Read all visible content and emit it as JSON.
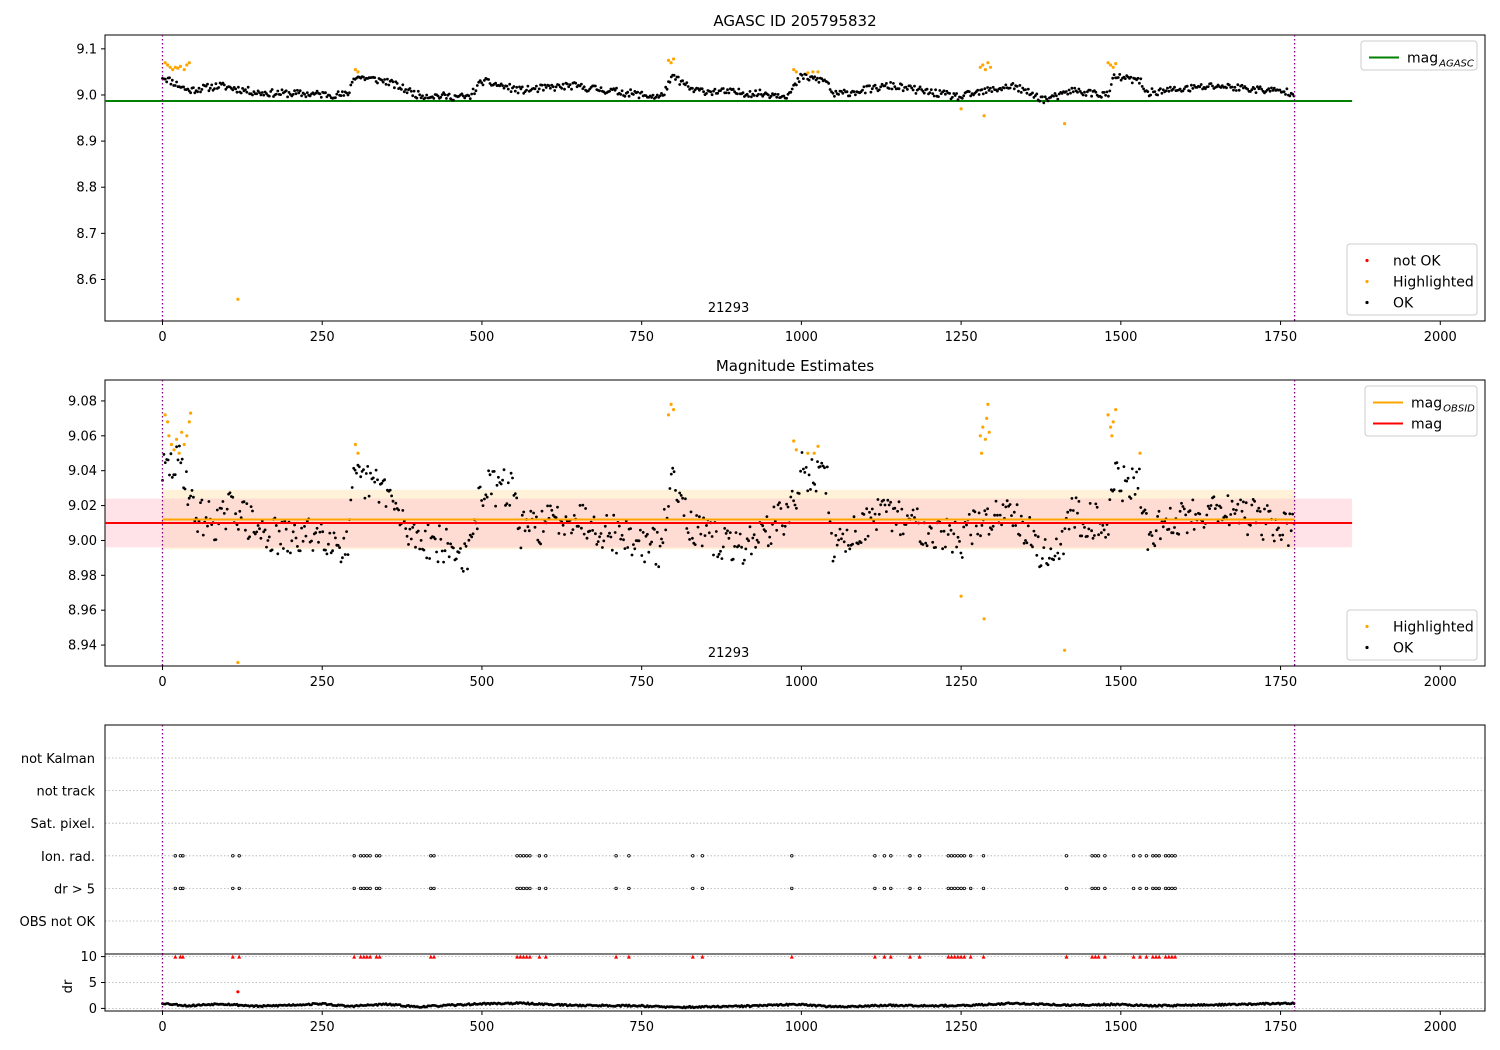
{
  "colors": {
    "ok": "#000000",
    "highlighted": "#ffa500",
    "not_ok": "#ff0000",
    "mag_agasc_line": "#008000",
    "mag_obsid_line": "#ffa500",
    "mag_line": "#ff0000",
    "obs_boundary": "#800080",
    "band_mag": "#ffc0cb",
    "band_obsid": "#ffa500"
  },
  "chart_data": [
    {
      "type": "scatter",
      "title": "AGASC ID 205795832",
      "xlabel": "",
      "ylabel": "",
      "xlim": [
        -90,
        2070
      ],
      "ylim": [
        8.51,
        9.13
      ],
      "xticks": [
        0,
        250,
        500,
        750,
        1000,
        1250,
        1500,
        1750,
        2000
      ],
      "yticks": [
        8.6,
        8.7,
        8.8,
        8.9,
        9.0,
        9.1
      ],
      "grid": false,
      "obs_boundaries": [
        0,
        1772
      ],
      "obs_label": "21293",
      "obs_label_x": 886,
      "reference_lines": [
        {
          "name": "mag_AGASC",
          "value": 8.987,
          "x_range": [
            -90,
            1862
          ],
          "color": "#008000"
        }
      ],
      "legends": [
        {
          "placement": "top-right",
          "entries": [
            {
              "label": "mag",
              "sub": "AGASC",
              "kind": "line",
              "color": "#008000"
            }
          ]
        },
        {
          "placement": "bottom-right",
          "entries": [
            {
              "label": "not OK",
              "kind": "marker",
              "color": "#ff0000"
            },
            {
              "label": "Highlighted",
              "kind": "marker",
              "color": "#ffa500"
            },
            {
              "label": "OK",
              "kind": "marker",
              "color": "#000000"
            }
          ]
        }
      ],
      "series": [
        {
          "name": "OK",
          "segments": [
            [
              0,
              9.04
            ],
            [
              40,
              9.01
            ],
            [
              90,
              9.02
            ],
            [
              150,
              9.005
            ],
            [
              290,
              9.0
            ],
            [
              300,
              9.04
            ],
            [
              350,
              9.03
            ],
            [
              400,
              9.0
            ],
            [
              480,
              8.995
            ],
            [
              500,
              9.03
            ],
            [
              560,
              9.01
            ],
            [
              640,
              9.02
            ],
            [
              780,
              8.995
            ],
            [
              800,
              9.04
            ],
            [
              830,
              9.01
            ],
            [
              980,
              9.0
            ],
            [
              1000,
              9.04
            ],
            [
              1040,
              9.03
            ],
            [
              1050,
              9.0
            ],
            [
              1140,
              9.02
            ],
            [
              1250,
              8.995
            ],
            [
              1260,
              9.0
            ],
            [
              1330,
              9.02
            ],
            [
              1380,
              8.99
            ],
            [
              1410,
              9.0
            ],
            [
              1420,
              9.01
            ],
            [
              1480,
              9.0
            ],
            [
              1490,
              9.04
            ],
            [
              1530,
              9.03
            ],
            [
              1540,
              9.005
            ],
            [
              1650,
              9.02
            ],
            [
              1772,
              9.005
            ]
          ]
        },
        {
          "name": "Highlighted",
          "points": [
            [
              4,
              9.07
            ],
            [
              8,
              9.065
            ],
            [
              12,
              9.06
            ],
            [
              16,
              9.055
            ],
            [
              20,
              9.06
            ],
            [
              24,
              9.058
            ],
            [
              28,
              9.062
            ],
            [
              34,
              9.055
            ],
            [
              38,
              9.065
            ],
            [
              42,
              9.07
            ],
            [
              118,
              8.557
            ],
            [
              302,
              9.055
            ],
            [
              306,
              9.05
            ],
            [
              792,
              9.075
            ],
            [
              796,
              9.07
            ],
            [
              800,
              9.078
            ],
            [
              988,
              9.055
            ],
            [
              992,
              9.05
            ],
            [
              1010,
              9.048
            ],
            [
              1018,
              9.05
            ],
            [
              1026,
              9.05
            ],
            [
              1250,
              8.97
            ],
            [
              1280,
              9.06
            ],
            [
              1284,
              9.065
            ],
            [
              1288,
              9.055
            ],
            [
              1292,
              9.07
            ],
            [
              1296,
              9.06
            ],
            [
              1286,
              8.955
            ],
            [
              1412,
              8.938
            ],
            [
              1480,
              9.07
            ],
            [
              1484,
              9.065
            ],
            [
              1488,
              9.06
            ],
            [
              1492,
              9.068
            ]
          ]
        }
      ]
    },
    {
      "type": "scatter",
      "title": "Magnitude Estimates",
      "xlabel": "",
      "ylabel": "",
      "xlim": [
        -90,
        2070
      ],
      "ylim": [
        8.928,
        9.092
      ],
      "xticks": [
        0,
        250,
        500,
        750,
        1000,
        1250,
        1500,
        1750,
        2000
      ],
      "yticks": [
        8.94,
        8.96,
        8.98,
        9.0,
        9.02,
        9.04,
        9.06,
        9.08
      ],
      "grid": false,
      "obs_boundaries": [
        0,
        1772
      ],
      "obs_label": "21293",
      "obs_label_x": 886,
      "bands": [
        {
          "name": "mag_OBSID_range",
          "low": 8.995,
          "high": 9.029,
          "x_range": [
            0,
            1772
          ],
          "color": "#ffa500",
          "opacity": 0.15
        },
        {
          "name": "mag_range",
          "low": 8.996,
          "high": 9.024,
          "x_range": [
            -90,
            1862
          ],
          "color": "#ffc0cb",
          "opacity": 0.45
        }
      ],
      "reference_lines": [
        {
          "name": "mag_OBSID",
          "value": 9.012,
          "x_range": [
            0,
            1772
          ],
          "color": "#ffa500"
        },
        {
          "name": "mag",
          "value": 9.01,
          "x_range": [
            -90,
            1862
          ],
          "color": "#ff0000"
        }
      ],
      "legends": [
        {
          "placement": "top-right",
          "entries": [
            {
              "label": "mag",
              "sub": "OBSID",
              "kind": "line",
              "color": "#ffa500"
            },
            {
              "label": "mag",
              "kind": "line",
              "color": "#ff0000"
            }
          ]
        },
        {
          "placement": "bottom-right",
          "entries": [
            {
              "label": "Highlighted",
              "kind": "marker",
              "color": "#ffa500"
            },
            {
              "label": "OK",
              "kind": "marker",
              "color": "#000000"
            }
          ]
        }
      ],
      "series": [
        {
          "name": "OK",
          "segments": [
            [
              0,
              9.04
            ],
            [
              30,
              9.045
            ],
            [
              50,
              9.015
            ],
            [
              90,
              9.01
            ],
            [
              110,
              9.02
            ],
            [
              150,
              9.005
            ],
            [
              200,
              9.0
            ],
            [
              250,
              9.005
            ],
            [
              290,
              8.995
            ],
            [
              300,
              9.035
            ],
            [
              350,
              9.03
            ],
            [
              380,
              9.005
            ],
            [
              420,
              9.0
            ],
            [
              480,
              8.99
            ],
            [
              500,
              9.03
            ],
            [
              550,
              9.03
            ],
            [
              560,
              9.005
            ],
            [
              640,
              9.015
            ],
            [
              700,
              9.005
            ],
            [
              780,
              8.995
            ],
            [
              800,
              9.04
            ],
            [
              830,
              9.005
            ],
            [
              900,
              8.995
            ],
            [
              960,
              9.01
            ],
            [
              990,
              9.02
            ],
            [
              1000,
              9.04
            ],
            [
              1040,
              9.035
            ],
            [
              1050,
              8.995
            ],
            [
              1100,
              9.01
            ],
            [
              1140,
              9.015
            ],
            [
              1250,
              9.0
            ],
            [
              1260,
              9.005
            ],
            [
              1330,
              9.02
            ],
            [
              1380,
              8.99
            ],
            [
              1410,
              9.0
            ],
            [
              1420,
              9.015
            ],
            [
              1480,
              9.01
            ],
            [
              1490,
              9.035
            ],
            [
              1530,
              9.03
            ],
            [
              1540,
              9.005
            ],
            [
              1650,
              9.02
            ],
            [
              1772,
              9.005
            ]
          ]
        },
        {
          "name": "Highlighted",
          "points": [
            [
              4,
              9.072
            ],
            [
              8,
              9.068
            ],
            [
              10,
              9.06
            ],
            [
              14,
              9.055
            ],
            [
              18,
              9.052
            ],
            [
              22,
              9.058
            ],
            [
              26,
              9.05
            ],
            [
              30,
              9.062
            ],
            [
              34,
              9.055
            ],
            [
              38,
              9.06
            ],
            [
              42,
              9.068
            ],
            [
              44,
              9.073
            ],
            [
              118,
              8.93
            ],
            [
              302,
              9.055
            ],
            [
              306,
              9.05
            ],
            [
              792,
              9.072
            ],
            [
              796,
              9.078
            ],
            [
              800,
              9.075
            ],
            [
              988,
              9.057
            ],
            [
              992,
              9.052
            ],
            [
              1010,
              9.05
            ],
            [
              1020,
              9.05
            ],
            [
              1026,
              9.054
            ],
            [
              1250,
              8.968
            ],
            [
              1280,
              9.06
            ],
            [
              1282,
              9.05
            ],
            [
              1284,
              9.065
            ],
            [
              1288,
              9.058
            ],
            [
              1290,
              9.07
            ],
            [
              1292,
              9.078
            ],
            [
              1294,
              9.062
            ],
            [
              1286,
              8.955
            ],
            [
              1412,
              8.937
            ],
            [
              1480,
              9.072
            ],
            [
              1484,
              9.065
            ],
            [
              1486,
              9.06
            ],
            [
              1488,
              9.068
            ],
            [
              1492,
              9.075
            ],
            [
              1530,
              9.05
            ]
          ]
        }
      ]
    },
    {
      "type": "scatter",
      "title": "",
      "xlabel": "",
      "ylabel": "",
      "xlim": [
        -90,
        2070
      ],
      "xticks": [
        0,
        250,
        500,
        750,
        1000,
        1250,
        1500,
        1750,
        2000
      ],
      "grid": true,
      "obs_boundaries": [
        0,
        1772
      ],
      "flag_rows": [
        "not Kalman",
        "not track",
        "Sat. pixel.",
        "Ion. rad.",
        "dr > 5",
        "OBS not OK"
      ],
      "flag_times": [
        20,
        28,
        32,
        110,
        120,
        300,
        310,
        315,
        320,
        325,
        335,
        340,
        420,
        425,
        555,
        560,
        565,
        570,
        575,
        590,
        600,
        710,
        730,
        830,
        845,
        985,
        1115,
        1130,
        1140,
        1170,
        1185,
        1230,
        1235,
        1240,
        1245,
        1250,
        1255,
        1265,
        1285,
        1415,
        1455,
        1460,
        1465,
        1475,
        1520,
        1530,
        1540,
        1550,
        1555,
        1560,
        1570,
        1575,
        1580,
        1585
      ],
      "flag_row_values": {
        "Ion. rad.": "all",
        "dr > 5": "all"
      }
    },
    {
      "type": "scatter",
      "title": "",
      "xlabel": "",
      "ylabel": "dr",
      "xlim": [
        -90,
        2070
      ],
      "ylim": [
        -0.5,
        10.5
      ],
      "xticks": [
        0,
        250,
        500,
        750,
        1000,
        1250,
        1500,
        1750,
        2000
      ],
      "yticks": [
        0,
        5,
        10
      ],
      "grid": true,
      "obs_boundaries": [
        0,
        1772
      ],
      "series": [
        {
          "name": "dr",
          "segments": [
            [
              0,
              1.0
            ],
            [
              40,
              0.5
            ],
            [
              90,
              0.9
            ],
            [
              150,
              0.4
            ],
            [
              250,
              0.9
            ],
            [
              290,
              0.4
            ],
            [
              350,
              0.8
            ],
            [
              400,
              0.3
            ],
            [
              500,
              0.9
            ],
            [
              560,
              1.0
            ],
            [
              640,
              0.6
            ],
            [
              750,
              0.5
            ],
            [
              800,
              0.2
            ],
            [
              900,
              0.4
            ],
            [
              1000,
              0.8
            ],
            [
              1050,
              0.3
            ],
            [
              1140,
              0.6
            ],
            [
              1250,
              0.5
            ],
            [
              1330,
              1.0
            ],
            [
              1420,
              0.6
            ],
            [
              1500,
              0.8
            ],
            [
              1540,
              0.5
            ],
            [
              1650,
              0.7
            ],
            [
              1772,
              1.0
            ]
          ]
        },
        {
          "name": "dr > 10",
          "value": 10,
          "color": "#ff0000"
        },
        {
          "name": "outlier",
          "points": [
            [
              118,
              3.2
            ]
          ],
          "color": "#ff0000"
        }
      ]
    }
  ]
}
